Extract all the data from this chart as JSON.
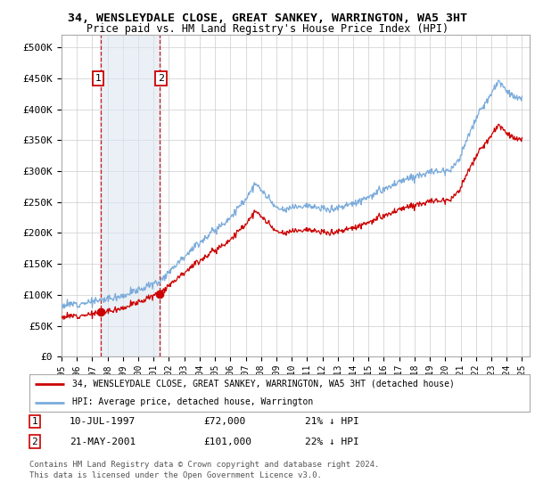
{
  "title": "34, WENSLEYDALE CLOSE, GREAT SANKEY, WARRINGTON, WA5 3HT",
  "subtitle": "Price paid vs. HM Land Registry's House Price Index (HPI)",
  "legend_line1": "34, WENSLEYDALE CLOSE, GREAT SANKEY, WARRINGTON, WA5 3HT (detached house)",
  "legend_line2": "HPI: Average price, detached house, Warrington",
  "transaction1_date": "10-JUL-1997",
  "transaction1_price": "£72,000",
  "transaction1_hpi": "21% ↓ HPI",
  "transaction2_date": "21-MAY-2001",
  "transaction2_price": "£101,000",
  "transaction2_hpi": "22% ↓ HPI",
  "footnote1": "Contains HM Land Registry data © Crown copyright and database right 2024.",
  "footnote2": "This data is licensed under the Open Government Licence v3.0.",
  "sale_color": "#cc0000",
  "hpi_color": "#7aabdb",
  "highlight_color": "#dce6f1",
  "bg_color": "#ffffff",
  "grid_color": "#cccccc",
  "yticks": [
    0,
    50000,
    100000,
    150000,
    200000,
    250000,
    300000,
    350000,
    400000,
    450000,
    500000
  ],
  "ylim": [
    0,
    520000
  ],
  "xlim_start": 1995.0,
  "xlim_end": 2025.5,
  "sale1_year": 1997.53,
  "sale1_price": 72000,
  "sale2_year": 2001.38,
  "sale2_price": 101000
}
